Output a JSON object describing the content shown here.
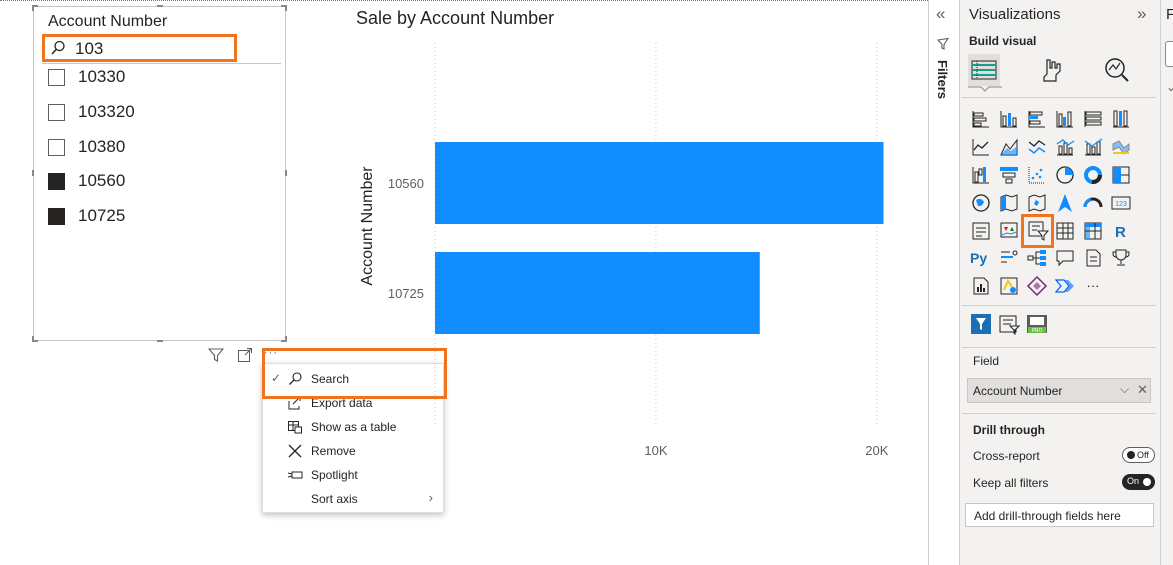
{
  "slicer": {
    "title": "Account Number",
    "search_value": "103",
    "items": [
      {
        "label": "10330",
        "checked": false
      },
      {
        "label": "103320",
        "checked": false
      },
      {
        "label": "10380",
        "checked": false
      },
      {
        "label": "10560",
        "checked": true
      },
      {
        "label": "10725",
        "checked": true
      }
    ],
    "more_options": "···"
  },
  "context_menu": {
    "items": [
      {
        "label": "Search",
        "icon": "search-icon",
        "checked": true
      },
      {
        "label": "Export data",
        "icon": "export-icon"
      },
      {
        "label": "Show as a table",
        "icon": "table-icon"
      },
      {
        "label": "Remove",
        "icon": "close-icon"
      },
      {
        "label": "Spotlight",
        "icon": "spotlight-icon"
      },
      {
        "label": "Sort axis",
        "icon": null,
        "submenu": true
      }
    ]
  },
  "chart_data": {
    "type": "bar",
    "orientation": "horizontal",
    "title": "Sale by Account Number",
    "ylabel": "Account Number",
    "xlabel": "",
    "categories": [
      "10560",
      "10725"
    ],
    "values": [
      20300,
      14700
    ],
    "x_ticks": [
      "10K",
      "20K"
    ],
    "xlim": [
      0,
      21500
    ],
    "bar_color": "#118dff",
    "grid": true
  },
  "filters_pane": {
    "label": "Filters",
    "collapse_glyph": "«"
  },
  "viz_pane": {
    "title": "Visualizations",
    "expand_glyph": "»",
    "build_visual": "Build visual",
    "field_label": "Field",
    "field_value": "Account Number",
    "drill_through": "Drill through",
    "cross_report": "Cross-report",
    "cross_report_state": "Off",
    "keep_all_filters": "Keep all filters",
    "keep_all_filters_state": "On",
    "drill_placeholder": "Add drill-through fields here",
    "more_visuals": "···",
    "r_label": "R",
    "py_label": "Py",
    "card_label": "123",
    "pro_label": "PRO",
    "accent": "#f0731e"
  },
  "right_strip": {
    "label": "F"
  }
}
